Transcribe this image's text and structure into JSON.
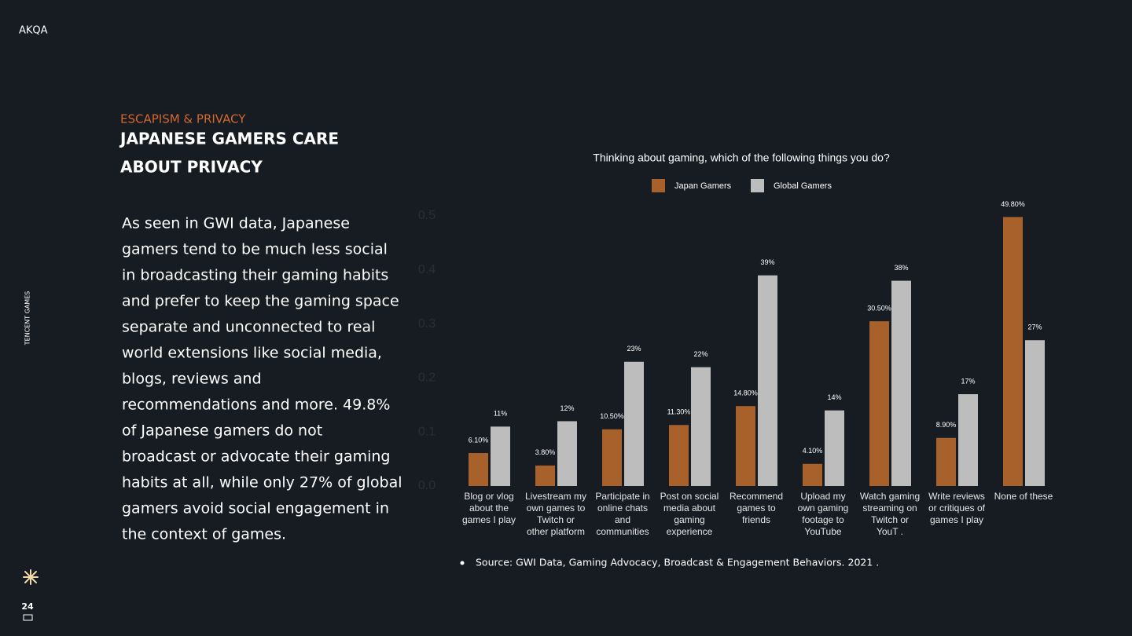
{
  "logo": "AKQA",
  "side_label": "TENCENT GAMES",
  "page_number": "24",
  "header": {
    "kicker": "ESCAPISM & PRIVACY",
    "title_lines": [
      "JAPANESE GAMERS CARE",
      "ABOUT PRIVACY"
    ]
  },
  "body_lines": [
    "As seen in GWI data, Japanese",
    "gamers tend to be much less social",
    "in broadcasting their gaming habits",
    "and prefer to keep the gaming space",
    "separate and unconnected to real",
    "world extensions like social media,",
    "blogs, reviews and",
    "recommendations and more. 49.8%",
    "of Japanese gamers do not",
    "broadcast or advocate their gaming",
    "habits at all, while only 27% of global",
    "gamers avoid social engagement in",
    "the context of games."
  ],
  "source": "Source: GWI Data, Gaming Advocacy, Broadcast & Engagement Behaviors. 2021 .",
  "chart_data": {
    "type": "bar",
    "title": "Thinking about gaming, which of the following things you do?",
    "categories": [
      [
        "Blog or vlog",
        "about the",
        "games I play"
      ],
      [
        "Livestream my",
        "own games to",
        "Twitch or",
        "other platform"
      ],
      [
        "Participate in",
        "online chats",
        "and",
        "communities"
      ],
      [
        "Post on social",
        "media about",
        "gaming",
        "experience"
      ],
      [
        "Recommend",
        "games to",
        "friends"
      ],
      [
        "Upload my",
        "own gaming",
        "footage to",
        "YouTube"
      ],
      [
        "Watch gaming",
        "streaming on",
        "Twitch or",
        "YouT ."
      ],
      [
        "Write reviews",
        "or critiques of",
        "games I play"
      ],
      [
        "None of these"
      ]
    ],
    "series": [
      {
        "name": "Japan Gamers",
        "color": "#a8612a",
        "values": [
          0.061,
          0.038,
          0.105,
          0.113,
          0.148,
          0.041,
          0.305,
          0.089,
          0.498
        ],
        "value_labels": [
          "6.10%",
          "3.80%",
          "10.50%",
          "11.30%",
          "14.80%",
          "4.10%",
          "30.50%",
          "8.90%",
          "49.80%"
        ]
      },
      {
        "name": "Global Gamers",
        "color": "#bdbdbd",
        "values": [
          0.11,
          0.12,
          0.23,
          0.22,
          0.39,
          0.14,
          0.38,
          0.17,
          0.27
        ],
        "value_labels": [
          "11%",
          "12%",
          "23%",
          "22%",
          "39%",
          "14%",
          "38%",
          "17%",
          "27%"
        ]
      }
    ],
    "ylim": [
      0,
      0.5
    ],
    "yticks": [
      {
        "value": 0,
        "label": "0.0"
      },
      0.1,
      0.2,
      0.3,
      0.4,
      0.5
    ],
    "legend": "top"
  }
}
